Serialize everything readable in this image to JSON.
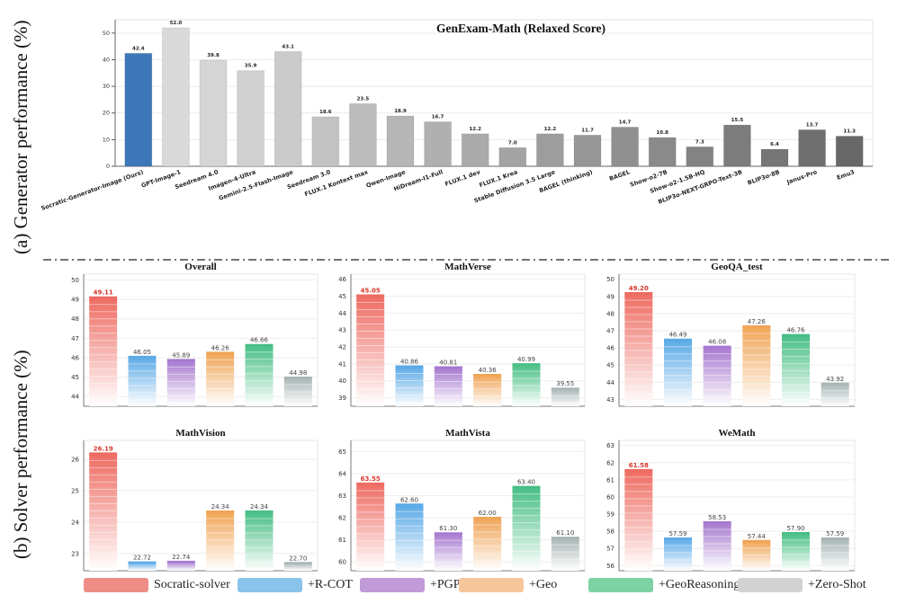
{
  "labels": {
    "side_a": "(a)  Generator  performance (%)",
    "side_b": "(b)  Solver  performance (%)"
  },
  "generator_chart": {
    "type": "bar",
    "title": "GenExam-Math (Relaxed Score)",
    "ylim": [
      0,
      55
    ],
    "yticks": [
      0,
      10,
      20,
      30,
      40,
      50
    ],
    "grid": true,
    "categories": [
      "Socratic-Generator-Image (Ours)",
      "GPT-Image-1",
      "Seedream 4.0",
      "Imagen-4-Ultra",
      "Gemini-2.5-Flash-Image",
      "Seedream 3.0",
      "FLUX.1 Kontext max",
      "Qwen-Image",
      "HiDream-I1-Full",
      "FLUX.1 dev",
      "FLUX.1 Krea",
      "Stable Diffusion 3.5 Large",
      "BAGEL (thinking)",
      "BAGEL",
      "Show-o2-7B",
      "Show-o2-1.5B-HQ",
      "BLIP3o-NEXT-GRPO-Text-3B",
      "BLIP3o-8B",
      "Janus-Pro",
      "Emu3"
    ],
    "values": [
      42.4,
      52.0,
      39.8,
      35.9,
      43.1,
      18.6,
      23.5,
      18.9,
      16.7,
      12.2,
      7.0,
      12.2,
      11.7,
      14.7,
      10.8,
      7.3,
      15.5,
      6.4,
      13.7,
      11.3
    ],
    "value_labels": [
      "42.4",
      "52.0",
      "39.8",
      "35.9",
      "43.1",
      "18.6",
      "23.5",
      "18.9",
      "16.7",
      "12.2",
      "7.0",
      "12.2",
      "11.7",
      "14.7",
      "10.8",
      "7.3",
      "15.5",
      "6.4",
      "13.7",
      "11.3"
    ],
    "colors": [
      "#3d77b9",
      "#d9d9d9",
      "#d5d5d5",
      "#d0d0d0",
      "#cbcbcb",
      "#c2c2c2",
      "#bcbcbc",
      "#b6b6b6",
      "#b0b0b0",
      "#aaaaaa",
      "#a3a3a3",
      "#9d9d9d",
      "#979797",
      "#909090",
      "#8a8a8a",
      "#838383",
      "#7c7c7c",
      "#767676",
      "#6f6f6f",
      "#686868"
    ]
  },
  "solver_series": [
    {
      "name": "Socratic-solver",
      "color": "#ee6b61",
      "legend_color": "#ee8d85"
    },
    {
      "name": "+R-COT",
      "color": "#5aa9e6",
      "legend_color": "#89c2ea"
    },
    {
      "name": "+PGPS",
      "color": "#a678cf",
      "legend_color": "#c19ad8"
    },
    {
      "name": "+Geo",
      "color": "#f0a455",
      "legend_color": "#f6c69a"
    },
    {
      "name": "+GeoReasoning",
      "color": "#46be84",
      "legend_color": "#7dd2a4"
    },
    {
      "name": "+Zero-Shot",
      "color": "#a8b4b4",
      "legend_color": "#d2d2d2"
    }
  ],
  "chart_data": [
    {
      "type": "bar",
      "title": "Overall",
      "ylim": [
        43.5,
        50.3
      ],
      "yticks": [
        44,
        45,
        46,
        47,
        48,
        49,
        50
      ],
      "values": [
        49.11,
        46.05,
        45.89,
        46.26,
        46.66,
        44.98
      ],
      "value_labels": [
        "49.11",
        "46.05",
        "45.89",
        "46.26",
        "46.66",
        "44.98"
      ]
    },
    {
      "type": "bar",
      "title": "MathVerse",
      "ylim": [
        38.5,
        46.3
      ],
      "yticks": [
        39,
        40,
        41,
        42,
        43,
        44,
        45,
        46
      ],
      "values": [
        45.05,
        40.86,
        40.81,
        40.36,
        40.99,
        39.55
      ],
      "value_labels": [
        "45.05",
        "40.86",
        "40.81",
        "40.36",
        "40.99",
        "39.55"
      ]
    },
    {
      "type": "bar",
      "title": "GeoQA_test",
      "ylim": [
        42.6,
        50.3
      ],
      "yticks": [
        43,
        44,
        45,
        46,
        47,
        48,
        49,
        50
      ],
      "values": [
        49.2,
        46.49,
        46.08,
        47.26,
        46.76,
        43.92
      ],
      "value_labels": [
        "49.20",
        "46.49",
        "46.08",
        "47.26",
        "46.76",
        "43.92"
      ]
    },
    {
      "type": "bar",
      "title": "MathVision",
      "ylim": [
        22.45,
        26.6
      ],
      "yticks": [
        23,
        24,
        25,
        26
      ],
      "values": [
        26.19,
        22.72,
        22.74,
        24.34,
        24.34,
        22.7
      ],
      "value_labels": [
        "26.19",
        "22.72",
        "22.74",
        "24.34",
        "24.34",
        "22.70"
      ]
    },
    {
      "type": "bar",
      "title": "MathVista",
      "ylim": [
        59.6,
        65.5
      ],
      "yticks": [
        60,
        61,
        62,
        63,
        64,
        65
      ],
      "values": [
        63.55,
        62.6,
        61.3,
        62.0,
        63.4,
        61.1
      ],
      "value_labels": [
        "63.55",
        "62.60",
        "61.30",
        "62.00",
        "63.40",
        "61.10"
      ]
    },
    {
      "type": "bar",
      "title": "WeMath",
      "ylim": [
        55.7,
        63.3
      ],
      "yticks": [
        56,
        57,
        58,
        59,
        60,
        61,
        62,
        63
      ],
      "values": [
        61.58,
        57.59,
        58.53,
        57.44,
        57.9,
        57.59
      ],
      "value_labels": [
        "61.58",
        "57.59",
        "58.53",
        "57.44",
        "57.90",
        "57.59"
      ]
    }
  ]
}
